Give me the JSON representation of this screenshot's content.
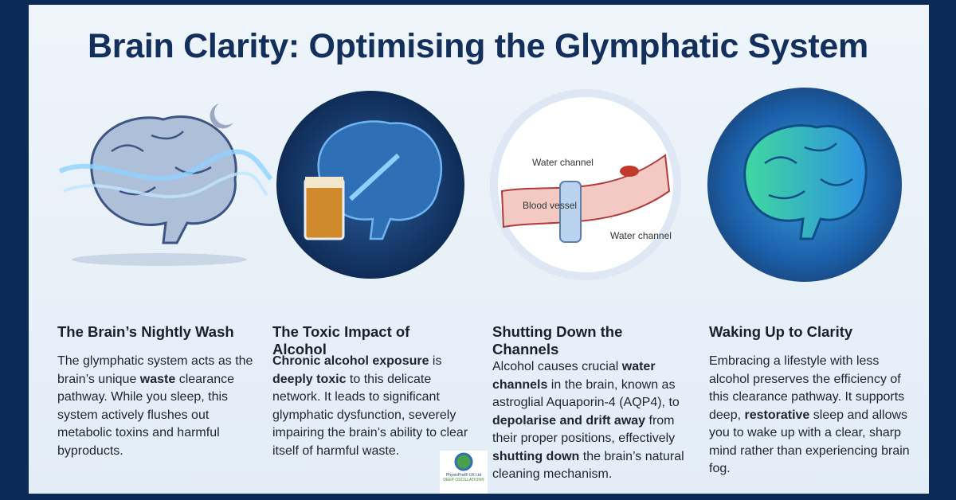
{
  "title": "Brain Clarity: Optimising the Glymphatic System",
  "diagram_labels": [
    "Water channel",
    "Blood vessel",
    "Water channel"
  ],
  "columns": [
    {
      "heading": "The Brain’s Nightly Wash",
      "body": [
        {
          "text": "The glymphatic system acts as the brain’s unique ",
          "bold": false
        },
        {
          "text": "waste",
          "bold": true
        },
        {
          "text": " clearance pathway. While you sleep, this system actively flushes out metabolic toxins and harmful byproducts.",
          "bold": false
        }
      ]
    },
    {
      "heading": "The Toxic Impact of Alcohol",
      "body": [
        {
          "text": "Chronic alcohol exposure",
          "bold": true
        },
        {
          "text": " is ",
          "bold": false
        },
        {
          "text": "deeply toxic",
          "bold": true
        },
        {
          "text": " to this delicate network. It leads to significant glymphatic dysfunction, severely impairing the brain’s ability to clear itself of harmful waste.",
          "bold": false
        }
      ]
    },
    {
      "heading": "Shutting Down the Channels",
      "body": [
        {
          "text": "Alcohol causes crucial ",
          "bold": false
        },
        {
          "text": "water channels",
          "bold": true
        },
        {
          "text": " in the brain, known as astroglial Aquaporin-4 (AQP4), to ",
          "bold": false
        },
        {
          "text": "depolarise and drift away",
          "bold": true
        },
        {
          "text": " from their proper positions, effectively ",
          "bold": false
        },
        {
          "text": "shutting down",
          "bold": true
        },
        {
          "text": " the brain’s natural cleaning mechanism.",
          "bold": false
        }
      ]
    },
    {
      "heading": "Waking Up to Clarity",
      "body": [
        {
          "text": "Embracing a lifestyle with less alcohol preserves the efficiency of this clearance pathway. It supports deep, ",
          "bold": false
        },
        {
          "text": "restorative",
          "bold": true
        },
        {
          "text": " sleep and allows you to wake up with a clear, sharp mind rather than experiencing brain fog.",
          "bold": false
        }
      ]
    }
  ],
  "logo": {
    "name": "PhysioPod® UK Ltd",
    "tagline": "DEEP OSCILLATION®"
  }
}
